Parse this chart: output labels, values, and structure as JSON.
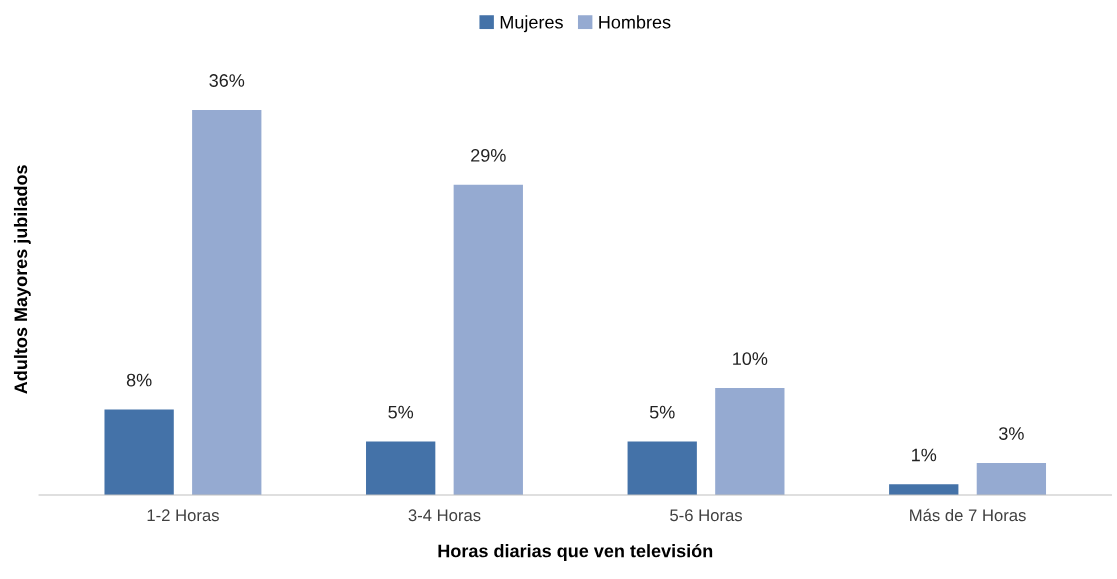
{
  "chart_data": {
    "type": "bar",
    "xlabel": "Horas diarias que ven televisión",
    "ylabel": "Adultos Mayores jubilados",
    "categories": [
      "1-2 Horas",
      "3-4 Horas",
      "5-6 Horas",
      "Más de 7 Horas"
    ],
    "series": [
      {
        "name": "Mujeres",
        "color": "#4472a8",
        "values": [
          8,
          5,
          5,
          1
        ],
        "value_labels": [
          "8%",
          "5%",
          "5%",
          "1%"
        ]
      },
      {
        "name": "Hombres",
        "color": "#95aad1",
        "values": [
          36,
          29,
          10,
          3
        ],
        "value_labels": [
          "36%",
          "29%",
          "10%",
          "3%"
        ]
      }
    ],
    "legend": "top",
    "grid": false,
    "tick_labels": "x"
  }
}
